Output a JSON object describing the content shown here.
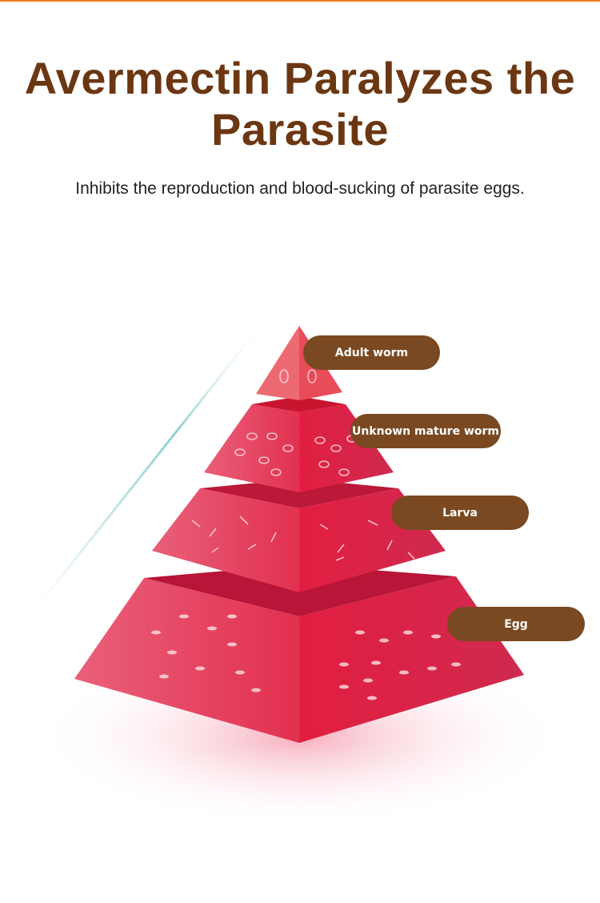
{
  "header": {
    "title": "Avermectin Paralyzes the Parasite",
    "subtitle": "Inhibits the reproduction and blood-sucking of parasite eggs."
  },
  "pyramid": {
    "levels": [
      {
        "label": "Adult worm"
      },
      {
        "label": "Unknown mature worm"
      },
      {
        "label": "Larva"
      },
      {
        "label": "Egg"
      }
    ]
  },
  "colors": {
    "accent_bar": "#f07a1e",
    "title": "#6b3712",
    "label_pill": "#7a4921",
    "pyramid": "#e0264a"
  }
}
